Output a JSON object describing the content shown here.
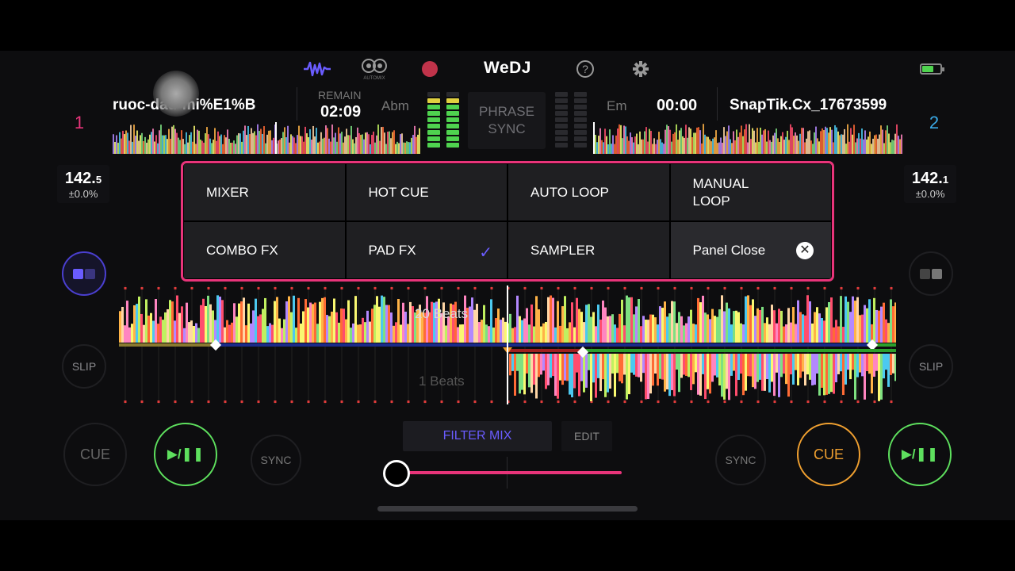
{
  "app": {
    "logo": "WeDJ",
    "automix_label": "AUTOMIX"
  },
  "deck1": {
    "number": "1",
    "title": "ruoc-dau-mi%E1%B",
    "remain_label": "REMAIN",
    "remain_time": "02:09",
    "key": "Abm",
    "bpm_main": "142.",
    "bpm_decimal": "5",
    "pitch": "±0.0%",
    "slip": "SLIP",
    "cue": "CUE",
    "play": "▶/❚❚",
    "sync": "SYNC",
    "number_color": "#e8347a"
  },
  "deck2": {
    "number": "2",
    "title": "SnapTik.Cx_17673599",
    "time": "00:00",
    "key": "Em",
    "bpm_main": "142.",
    "bpm_decimal": "1",
    "pitch": "±0.0%",
    "slip": "SLIP",
    "cue": "CUE",
    "play": "▶/❚❚",
    "sync": "SYNC",
    "number_color": "#3aa9e6"
  },
  "phrase_sync": {
    "line1": "PHRASE",
    "line2": "SYNC"
  },
  "panel": {
    "items": [
      {
        "label": "MIXER"
      },
      {
        "label": "HOT CUE"
      },
      {
        "label": "AUTO LOOP"
      },
      {
        "label": "MANUAL\nLOOP"
      },
      {
        "label": "COMBO FX"
      },
      {
        "label": "PAD FX",
        "checked": true
      },
      {
        "label": "SAMPLER"
      },
      {
        "label": "Panel Close"
      }
    ],
    "border_color": "#e8347a"
  },
  "waveform": {
    "beats_top": "20 Beats",
    "beats_bottom": "1 Beats"
  },
  "bottom": {
    "filter_mix": "FILTER MIX",
    "edit": "EDIT",
    "crossfader_position": 0.0
  },
  "colors": {
    "accent": "#6a5cff",
    "play_green": "#5ee05e",
    "cue_orange": "#f0a030",
    "pink": "#e8347a"
  }
}
